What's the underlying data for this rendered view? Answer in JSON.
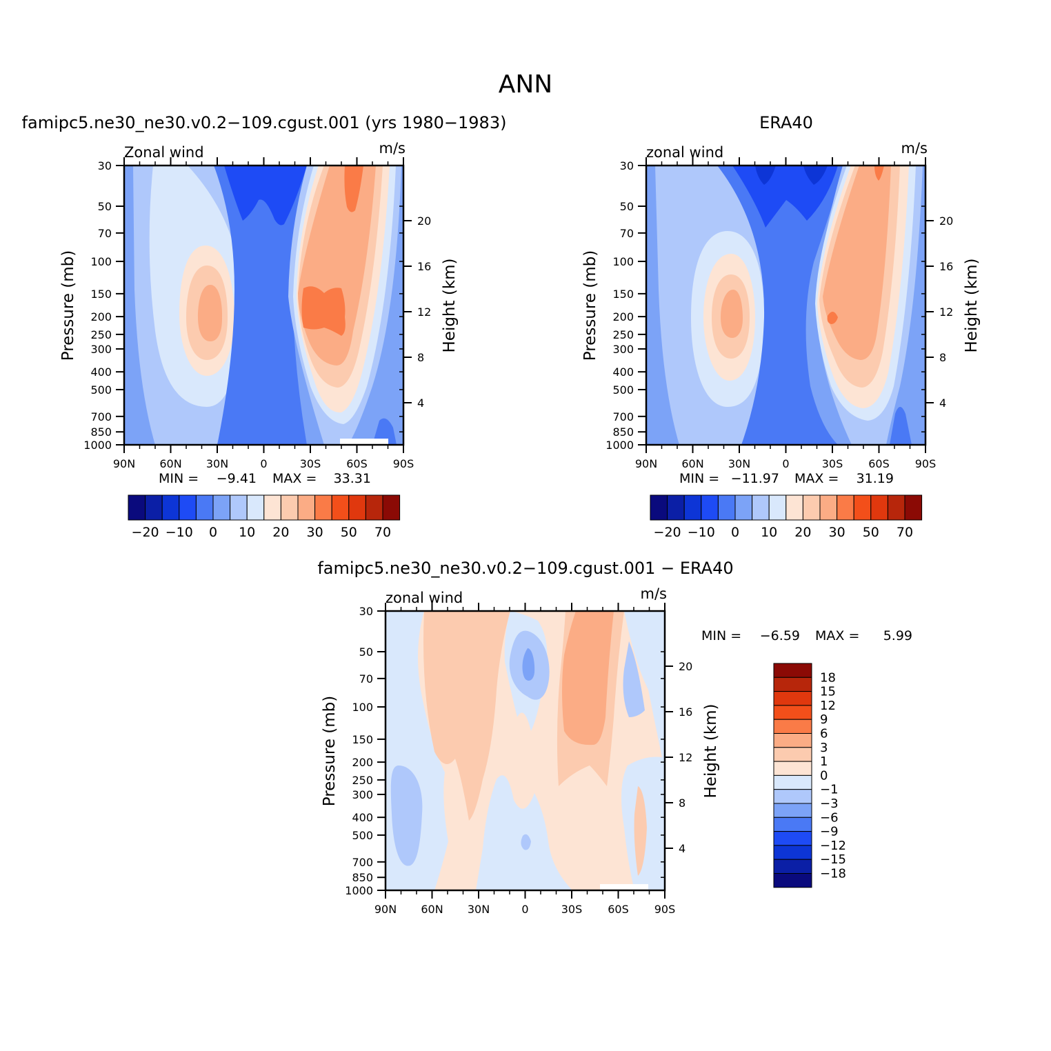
{
  "main_title": "ANN",
  "axis_common": {
    "pressure_ticks": [
      "30",
      "50",
      "70",
      "100",
      "150",
      "200",
      "250",
      "300",
      "400",
      "500",
      "700",
      "850",
      "1000"
    ],
    "height_ticks": [
      "20",
      "16",
      "12",
      "8",
      "4"
    ],
    "lat_ticks": [
      "90N",
      "60N",
      "30N",
      "0",
      "30S",
      "60S",
      "90S"
    ],
    "ylabel": "Pressure (mb)",
    "ylabel_right": "Height (km)",
    "units": "m/s"
  },
  "chart_data": [
    {
      "type": "heatmap",
      "id": "model",
      "title": "famipc5.ne30_ne30.v0.2−109.cgust.001 (yrs 1980−1983)",
      "variable": "Zonal wind",
      "min_label": "MIN =",
      "min_value": "−9.41",
      "max_label": "MAX =",
      "max_value": "33.31",
      "colorbar_labels": [
        "−20",
        "−10",
        "0",
        "10",
        "20",
        "30",
        "50",
        "70"
      ],
      "jets": [
        {
          "hemisphere": "NH",
          "lat": 40,
          "pressure_mb": 200,
          "peak_ms": 25
        },
        {
          "hemisphere": "SH",
          "lat": -45,
          "pressure_mb": 180,
          "peak_ms": 33.31
        }
      ]
    },
    {
      "type": "heatmap",
      "id": "obs",
      "title": "ERA40",
      "variable": "zonal wind",
      "min_label": "MIN =",
      "min_value": "−11.97",
      "max_label": "MAX =",
      "max_value": "31.19",
      "colorbar_labels": [
        "−20",
        "−10",
        "0",
        "10",
        "20",
        "30",
        "50",
        "70"
      ],
      "jets": [
        {
          "hemisphere": "NH",
          "lat": 40,
          "pressure_mb": 200,
          "peak_ms": 25
        },
        {
          "hemisphere": "SH",
          "lat": -45,
          "pressure_mb": 200,
          "peak_ms": 31.19
        }
      ]
    },
    {
      "type": "heatmap",
      "id": "diff",
      "title": "famipc5.ne30_ne30.v0.2−109.cgust.001  −  ERA40",
      "variable": "zonal wind",
      "min_label": "MIN =",
      "min_value": "−6.59",
      "max_label": "MAX =",
      "max_value": "5.99",
      "colorbar_labels": [
        "18",
        "15",
        "12",
        "9",
        "6",
        "3",
        "1",
        "0",
        "−1",
        "−3",
        "−6",
        "−9",
        "−12",
        "−15",
        "−18"
      ]
    }
  ],
  "colors": {
    "scale16": [
      "#0a0a7d",
      "#0b1fa6",
      "#0d35d6",
      "#1e4bf5",
      "#4a79f5",
      "#7ca3f7",
      "#afc8fb",
      "#d9e8fc",
      "#fde4d4",
      "#fccbaf",
      "#fbac85",
      "#fa7b47",
      "#f34f1a",
      "#e0380e",
      "#b7260b",
      "#8b0a05"
    ]
  }
}
